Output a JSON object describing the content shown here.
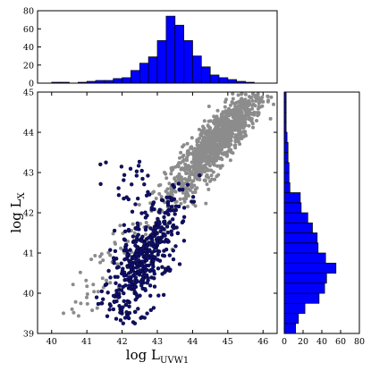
{
  "chart_data": [
    {
      "type": "scatter",
      "xlabel": "log L",
      "xlabel_sub": "UVW1",
      "ylabel": "log L",
      "ylabel_sub": "X",
      "xlim": [
        39.6,
        46.4
      ],
      "ylim": [
        39,
        45
      ],
      "xticks": [
        "40",
        "41",
        "42",
        "43",
        "44",
        "45",
        "46"
      ],
      "yticks": [
        "39",
        "40",
        "41",
        "42",
        "43",
        "44",
        "45"
      ],
      "grid": false,
      "series": [
        {
          "color": "#8c8c8c",
          "description": "grey points, concentrated around logL_UVW1 ≈ 44.8 and logL_X ≈ 43.9, scattered down to ~(40.5, 39.6)"
        },
        {
          "color": "#10106e",
          "description": "dark navy points, concentrated around logL_UVW1 ≈ 42.6 and logL_X ≈ 40.8"
        }
      ]
    },
    {
      "type": "bar",
      "orientation": "vertical",
      "color": "#0000ff",
      "ylim": [
        0,
        80
      ],
      "yticks": [
        "0",
        "20",
        "40",
        "60",
        "80"
      ],
      "bin_edges": [
        40.0,
        40.25,
        40.5,
        40.75,
        41.0,
        41.25,
        41.5,
        41.75,
        42.0,
        42.25,
        42.5,
        42.75,
        43.0,
        43.25,
        43.5,
        43.75,
        44.0,
        44.25,
        44.5,
        44.75,
        45.0,
        45.25,
        45.5,
        45.75,
        46.0
      ],
      "values": [
        1,
        1,
        0,
        1,
        2,
        3,
        3,
        5,
        6,
        14,
        22,
        29,
        47,
        74,
        64,
        47,
        30,
        18,
        9,
        6,
        4,
        2,
        1,
        0
      ]
    },
    {
      "type": "bar",
      "orientation": "horizontal",
      "color": "#0000ff",
      "xlim": [
        0,
        80
      ],
      "xticks": [
        "0",
        "20",
        "40",
        "60",
        "80"
      ],
      "bin_edges": [
        39.0,
        39.25,
        39.5,
        39.75,
        40.0,
        40.25,
        40.5,
        40.75,
        41.0,
        41.25,
        41.5,
        41.75,
        42.0,
        42.25,
        42.5,
        42.75,
        43.0,
        43.25,
        43.5,
        43.75,
        44.0,
        44.25,
        44.5,
        44.75,
        45.0
      ],
      "values": [
        12,
        15,
        22,
        37,
        43,
        45,
        55,
        44,
        36,
        35,
        30,
        25,
        18,
        17,
        6,
        5,
        5,
        4,
        4,
        3,
        2,
        2,
        2,
        2
      ]
    }
  ]
}
